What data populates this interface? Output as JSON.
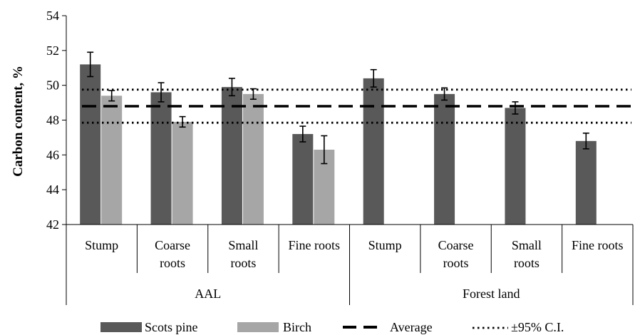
{
  "chart_data": {
    "type": "bar",
    "title": "",
    "xlabel": "",
    "ylabel": "Carbon content, %",
    "ylim": [
      42,
      54
    ],
    "yticks": [
      42,
      44,
      46,
      48,
      50,
      52,
      54
    ],
    "grid": false,
    "legend_position": "bottom",
    "groups": [
      {
        "name": "AAL",
        "categories": [
          [
            "Stump"
          ],
          [
            "Coarse",
            "roots"
          ],
          [
            "Small",
            "roots"
          ],
          [
            "Fine roots"
          ]
        ]
      },
      {
        "name": "Forest land",
        "categories": [
          [
            "Stump"
          ],
          [
            "Coarse",
            "roots"
          ],
          [
            "Small",
            "roots"
          ],
          [
            "Fine roots"
          ]
        ]
      }
    ],
    "series": [
      {
        "name": "Scots pine",
        "color": "#595959",
        "values": [
          51.2,
          49.6,
          49.9,
          47.2,
          50.4,
          49.5,
          48.7,
          46.8
        ],
        "errors": [
          0.7,
          0.55,
          0.5,
          0.45,
          0.5,
          0.35,
          0.35,
          0.45
        ]
      },
      {
        "name": "Birch",
        "color": "#a6a6a6",
        "values": [
          49.4,
          47.9,
          49.5,
          46.3,
          null,
          null,
          null,
          null
        ],
        "errors": [
          0.3,
          0.3,
          0.3,
          0.8,
          null,
          null,
          null,
          null
        ]
      }
    ],
    "average": {
      "name": "Average",
      "value": 48.8
    },
    "ci": {
      "name": "±95% C.I.",
      "lower": 47.85,
      "upper": 49.75
    }
  }
}
